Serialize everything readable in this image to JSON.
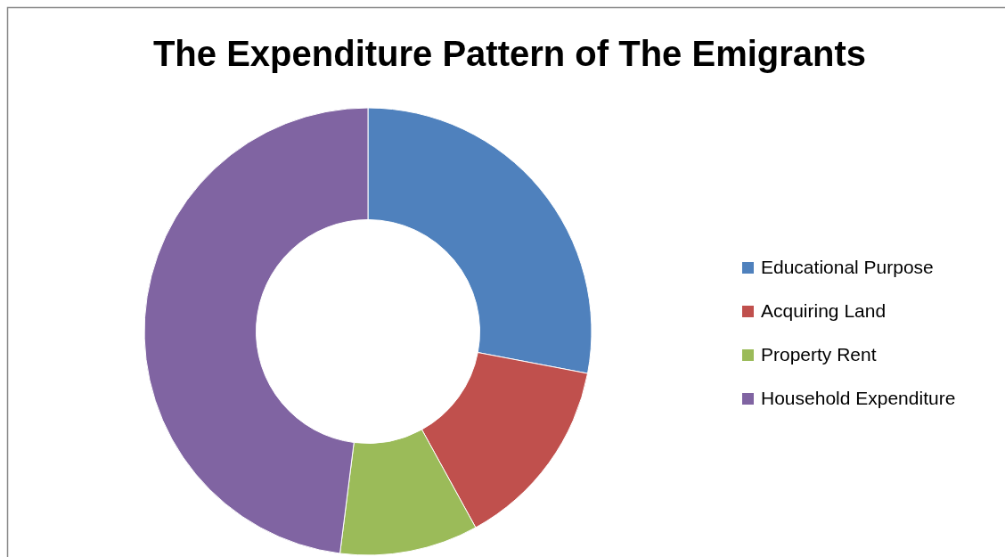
{
  "chart_data": {
    "type": "donut",
    "title": "The Expenditure Pattern of The Emigrants",
    "categories": [
      "Educational Purpose",
      "Acquiring Land",
      "Property Rent",
      "Household Expenditure"
    ],
    "values": [
      28,
      14,
      10,
      48
    ],
    "colors": [
      "#4f81bd",
      "#c0504d",
      "#9bbb59",
      "#8064a2"
    ],
    "legend": "right"
  }
}
